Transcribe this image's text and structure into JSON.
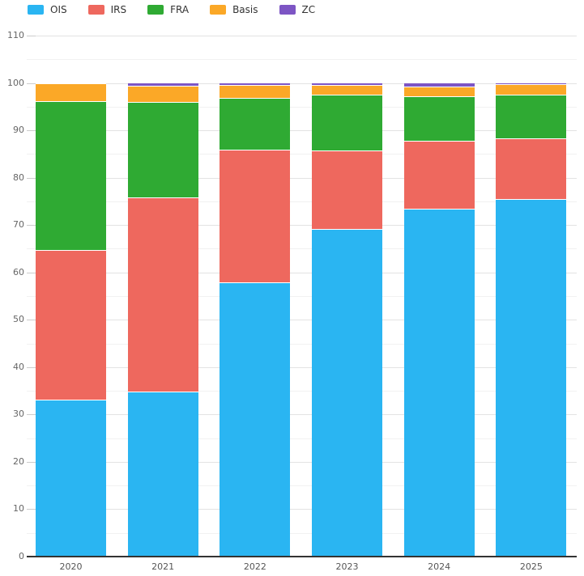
{
  "chart_data": {
    "type": "bar",
    "stacked": true,
    "percent_total": 100,
    "title": "",
    "xlabel": "",
    "ylabel": "",
    "categories": [
      "2020",
      "2021",
      "2022",
      "2023",
      "2024",
      "2025"
    ],
    "series": [
      {
        "name": "OIS",
        "color": "#2ab5f2",
        "values": [
          32.9,
          34.6,
          57.8,
          69.0,
          73.3,
          75.4
        ]
      },
      {
        "name": "IRS",
        "color": "#ee685e",
        "values": [
          31.6,
          41.1,
          27.9,
          16.6,
          14.4,
          12.8
        ]
      },
      {
        "name": "FRA",
        "color": "#2faa33",
        "values": [
          31.5,
          20.1,
          11.0,
          11.8,
          9.4,
          9.2
        ]
      },
      {
        "name": "Basis",
        "color": "#fba827",
        "values": [
          3.7,
          3.4,
          2.7,
          2.0,
          2.0,
          2.2
        ]
      },
      {
        "name": "ZC",
        "color": "#7d55c4",
        "values": [
          0.3,
          0.8,
          0.6,
          0.6,
          0.9,
          0.4
        ]
      }
    ],
    "ylim": [
      0,
      110
    ],
    "y_major_ticks": [
      0,
      10,
      20,
      30,
      40,
      50,
      60,
      70,
      80,
      90,
      100,
      110
    ],
    "y_minor_step": 5,
    "grid": "on",
    "legend_position": "top-left",
    "colors": {
      "axis_line": "#333333",
      "grid_major": "#e3e3e3",
      "grid_minor": "#f1f1f1",
      "tick": "#cccccc",
      "y_label_text": "#666666",
      "x_label_text": "#555555",
      "legend_text": "#333333",
      "background": "#ffffff",
      "segment_separator": "#ffffff"
    }
  }
}
